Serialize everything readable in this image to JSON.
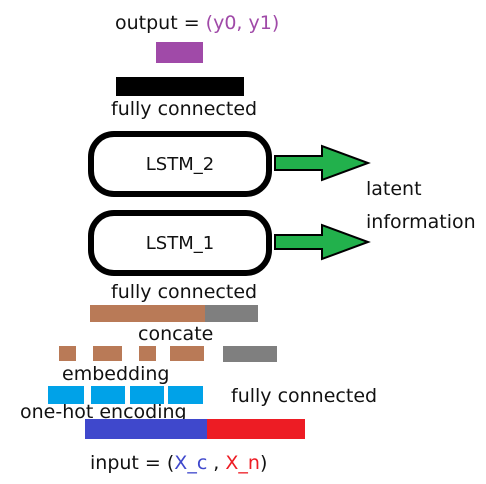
{
  "output": {
    "prefix": "output = ",
    "value": "(y0, y1)",
    "value_color": "#a04aa8",
    "bar_color": "#a04aa8"
  },
  "fc_top": {
    "label": "fully connected",
    "bar_color": "#000000"
  },
  "lstm_2": {
    "label": "LSTM_2"
  },
  "lstm_1": {
    "label": "LSTM_1"
  },
  "latent": {
    "line1": "latent",
    "line2": "information",
    "arrow_color": "#22b14c"
  },
  "fc_mid": {
    "label": "fully connected"
  },
  "concate": {
    "label": "concate",
    "embed_color": "#b97a57",
    "numeric_color": "#7f7f7f"
  },
  "embedding": {
    "label": "embedding",
    "color": "#b97a57"
  },
  "one_hot": {
    "label": "one-hot encoding",
    "color": "#00a2e8"
  },
  "fc_numeric": {
    "label": "fully connected",
    "color": "#7f7f7f"
  },
  "input": {
    "prefix": "input = (",
    "xc": "X_c",
    "sep": " , ",
    "xn": "X_n",
    "suffix": ")",
    "xc_color": "#3f48cc",
    "xn_color": "#ed1c24"
  }
}
